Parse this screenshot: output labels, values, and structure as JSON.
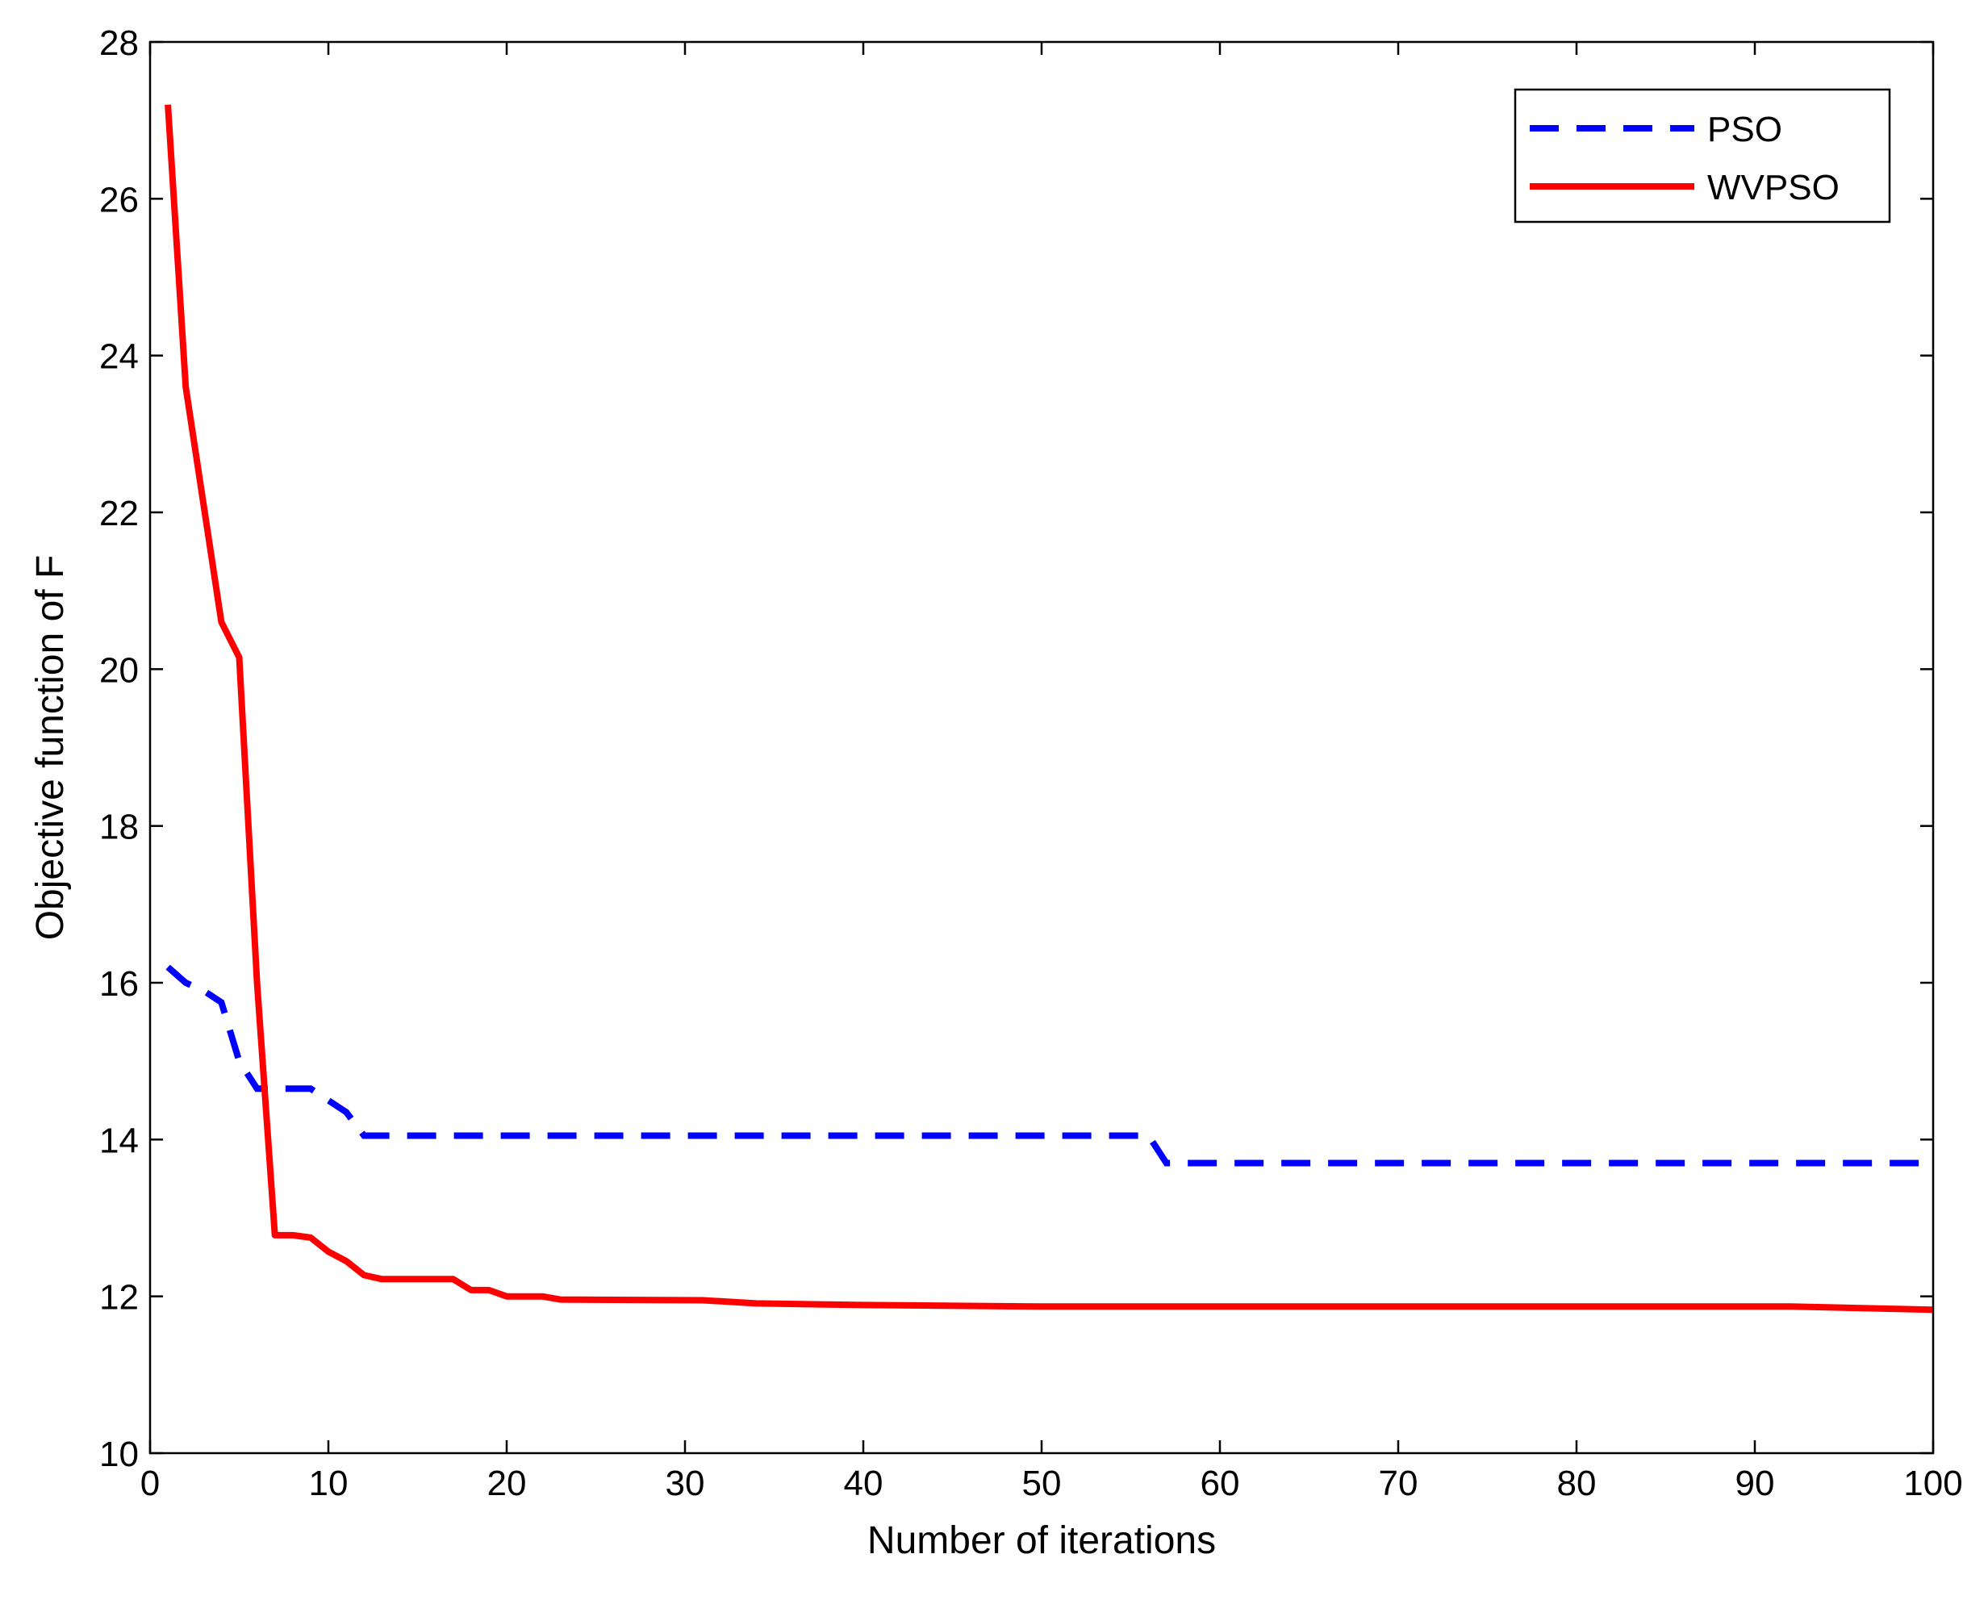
{
  "chart_data": {
    "type": "line",
    "title": "",
    "xlabel": "Number of iterations",
    "ylabel": "Objective function of F",
    "xlim": [
      0,
      100
    ],
    "ylim": [
      10,
      28
    ],
    "xticks": [
      0,
      10,
      20,
      30,
      40,
      50,
      60,
      70,
      80,
      90,
      100
    ],
    "yticks": [
      10,
      12,
      14,
      16,
      18,
      20,
      22,
      24,
      26,
      28
    ],
    "xtick_labels": [
      "0",
      "10",
      "20",
      "30",
      "40",
      "50",
      "60",
      "70",
      "80",
      "90",
      "100"
    ],
    "ytick_labels": [
      "10",
      "12",
      "14",
      "16",
      "18",
      "20",
      "22",
      "24",
      "26",
      "28"
    ],
    "grid": false,
    "legend_position": "top-right",
    "series": [
      {
        "name": "PSO",
        "color": "#0000ff",
        "style": "dashed",
        "x": [
          1,
          2,
          3,
          4,
          5,
          6,
          7,
          8,
          9,
          10,
          11,
          12,
          13,
          56,
          57,
          100
        ],
        "y": [
          16.2,
          16.0,
          15.9,
          15.75,
          15.0,
          14.65,
          14.65,
          14.65,
          14.65,
          14.5,
          14.35,
          14.05,
          14.05,
          14.05,
          13.7,
          13.7
        ]
      },
      {
        "name": "WVPSO",
        "color": "#ff0000",
        "style": "solid",
        "x": [
          1,
          2,
          3,
          4,
          5,
          6,
          7,
          8,
          9,
          10,
          11,
          12,
          13,
          17,
          18,
          19,
          20,
          22,
          23,
          31,
          34,
          40,
          50,
          92,
          100
        ],
        "y": [
          27.2,
          23.6,
          22.1,
          20.6,
          20.15,
          16.0,
          12.78,
          12.78,
          12.75,
          12.57,
          12.45,
          12.27,
          12.22,
          12.22,
          12.08,
          12.08,
          12.0,
          12.0,
          11.96,
          11.95,
          11.91,
          11.89,
          11.87,
          11.87,
          11.83
        ]
      }
    ]
  }
}
